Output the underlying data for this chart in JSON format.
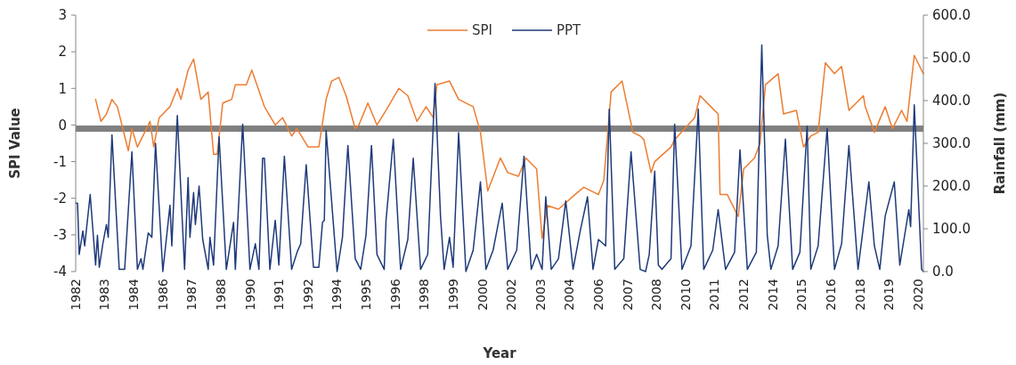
{
  "chart_data": {
    "type": "line",
    "xlabel": "Year",
    "ylabel": "SPI Value",
    "y2label": "Rainfall (mm)",
    "legend": "top",
    "xlim": [
      "1982-01",
      "2020-12"
    ],
    "xticks": [
      {
        "value": "1982-01",
        "label": "1982"
      },
      {
        "value": "1983-05",
        "label": "1983"
      },
      {
        "value": "1984-09",
        "label": "1984"
      },
      {
        "value": "1986-01",
        "label": "1986"
      },
      {
        "value": "1987-05",
        "label": "1987"
      },
      {
        "value": "1988-09",
        "label": "1988"
      },
      {
        "value": "1990-01",
        "label": "1990"
      },
      {
        "value": "1991-05",
        "label": "1991"
      },
      {
        "value": "1992-09",
        "label": "1992"
      },
      {
        "value": "1994-01",
        "label": "1994"
      },
      {
        "value": "1995-05",
        "label": "1995"
      },
      {
        "value": "1996-09",
        "label": "1996"
      },
      {
        "value": "1998-01",
        "label": "1998"
      },
      {
        "value": "1999-05",
        "label": "1999"
      },
      {
        "value": "2000-09",
        "label": "2000"
      },
      {
        "value": "2002-01",
        "label": "2002"
      },
      {
        "value": "2003-05",
        "label": "2003"
      },
      {
        "value": "2004-09",
        "label": "2004"
      },
      {
        "value": "2006-01",
        "label": "2006"
      },
      {
        "value": "2007-05",
        "label": "2007"
      },
      {
        "value": "2008-09",
        "label": "2008"
      },
      {
        "value": "2010-01",
        "label": "2010"
      },
      {
        "value": "2011-05",
        "label": "2011"
      },
      {
        "value": "2012-09",
        "label": "2012"
      },
      {
        "value": "2014-01",
        "label": "2014"
      },
      {
        "value": "2015-05",
        "label": "2015"
      },
      {
        "value": "2016-09",
        "label": "2016"
      },
      {
        "value": "2018-01",
        "label": "2018"
      },
      {
        "value": "2019-05",
        "label": "2019"
      },
      {
        "value": "2020-09",
        "label": "2020"
      }
    ],
    "ylim": [
      -4,
      3
    ],
    "yticks": [
      -4,
      -3,
      -2,
      -1,
      0,
      1,
      2,
      3
    ],
    "y2lim": [
      0,
      600
    ],
    "y2ticks": [
      {
        "value": 0,
        "label": "0.0"
      },
      {
        "value": 100,
        "label": "100.0"
      },
      {
        "value": 200,
        "label": "200.0"
      },
      {
        "value": 300,
        "label": "300.0"
      },
      {
        "value": 400,
        "label": "400.0"
      },
      {
        "value": 500,
        "label": "500.0"
      },
      {
        "value": 600,
        "label": "600.0"
      }
    ],
    "ref_lines": [
      {
        "axis": "y",
        "value": -0.1,
        "color": "#808080"
      }
    ],
    "series": [
      {
        "name": "SPI",
        "color": "#ed7d31",
        "x": [
          "1982-12",
          "1983-03",
          "1983-06",
          "1983-09",
          "1983-12",
          "1984-06",
          "1984-08",
          "1984-11",
          "1985-06",
          "1985-08",
          "1985-11",
          "1986-05",
          "1986-09",
          "1986-11",
          "1987-03",
          "1987-06",
          "1987-10",
          "1988-02",
          "1988-05",
          "1988-07",
          "1988-10",
          "1989-03",
          "1989-05",
          "1989-11",
          "1990-02",
          "1990-09",
          "1991-03",
          "1991-07",
          "1991-12",
          "1992-03",
          "1992-09",
          "1993-03",
          "1993-07",
          "1993-10",
          "1994-02",
          "1994-06",
          "1994-11",
          "1995-01",
          "1995-06",
          "1995-11",
          "1996-04",
          "1996-11",
          "1997-04",
          "1997-09",
          "1998-02",
          "1998-06",
          "1998-08",
          "1999-03",
          "1999-08",
          "2000-04",
          "2000-08",
          "2000-12",
          "2001-07",
          "2001-11",
          "2002-05",
          "2002-09",
          "2003-03",
          "2003-06",
          "2003-09",
          "2004-03",
          "2004-12",
          "2005-05",
          "2006-01",
          "2006-04",
          "2006-08",
          "2007-02",
          "2007-08",
          "2007-12",
          "2008-02",
          "2008-06",
          "2008-08",
          "2009-05",
          "2009-07",
          "2010-06",
          "2010-09",
          "2011-03",
          "2011-07",
          "2011-08",
          "2011-12",
          "2012-06",
          "2012-09",
          "2013-03",
          "2013-06",
          "2013-09",
          "2014-04",
          "2014-07",
          "2015-02",
          "2015-06",
          "2015-10",
          "2016-02",
          "2016-06",
          "2016-11",
          "2017-03",
          "2017-07",
          "2018-03",
          "2018-04",
          "2018-09",
          "2019-03",
          "2019-07",
          "2019-12",
          "2020-03",
          "2020-07",
          "2020-12"
        ],
        "values": [
          0.7,
          0.1,
          0.3,
          0.7,
          0.5,
          -0.7,
          -0.1,
          -0.6,
          0.1,
          -0.6,
          0.2,
          0.5,
          1.0,
          0.7,
          1.5,
          1.8,
          0.7,
          0.9,
          -0.8,
          -0.8,
          0.6,
          0.7,
          1.1,
          1.1,
          1.5,
          0.5,
          0.0,
          0.2,
          -0.3,
          -0.1,
          -0.6,
          -0.6,
          0.7,
          1.2,
          1.3,
          0.8,
          -0.1,
          0.0,
          0.6,
          0.0,
          0.4,
          1.0,
          0.8,
          0.1,
          0.5,
          0.2,
          1.1,
          1.2,
          0.7,
          0.5,
          -0.2,
          -1.8,
          -0.9,
          -1.3,
          -1.4,
          -0.9,
          -1.2,
          -3.1,
          -2.2,
          -2.3,
          -1.9,
          -1.7,
          -1.9,
          -1.5,
          0.9,
          1.2,
          -0.2,
          -0.3,
          -0.4,
          -1.3,
          -1.0,
          -0.6,
          -0.4,
          0.2,
          0.8,
          0.5,
          0.3,
          -1.9,
          -1.9,
          -2.5,
          -1.2,
          -0.9,
          -0.5,
          1.1,
          1.4,
          0.3,
          0.4,
          -0.6,
          -0.3,
          -0.2,
          1.7,
          1.4,
          1.6,
          0.4,
          0.8,
          0.5,
          -0.2,
          0.5,
          -0.1,
          0.4,
          0.1,
          1.9,
          1.4
        ]
      },
      {
        "name": "PPT",
        "color": "#1f3a7a",
        "axis": "y2",
        "x": [
          "1982-01",
          "1982-02",
          "1982-03",
          "1982-05",
          "1982-06",
          "1982-09",
          "1982-12",
          "1983-01",
          "1983-02",
          "1983-04",
          "1983-06",
          "1983-07",
          "1983-09",
          "1984-01",
          "1984-04",
          "1984-08",
          "1984-11",
          "1985-01",
          "1985-02",
          "1985-05",
          "1985-07",
          "1985-09",
          "1986-01",
          "1986-05",
          "1986-06",
          "1986-09",
          "1987-01",
          "1987-03",
          "1987-04",
          "1987-06",
          "1987-07",
          "1987-09",
          "1987-11",
          "1988-02",
          "1988-03",
          "1988-05",
          "1988-08",
          "1988-12",
          "1989-04",
          "1989-05",
          "1989-09",
          "1990-01",
          "1990-04",
          "1990-06",
          "1990-08",
          "1990-09",
          "1990-12",
          "1991-03",
          "1991-05",
          "1991-08",
          "1991-12",
          "1992-03",
          "1992-05",
          "1992-08",
          "1992-12",
          "1993-03",
          "1993-05",
          "1993-06",
          "1993-07",
          "1994-01",
          "1994-04",
          "1994-07",
          "1994-11",
          "1995-02",
          "1995-05",
          "1995-08",
          "1995-11",
          "1996-03",
          "1996-04",
          "1996-08",
          "1996-12",
          "1997-04",
          "1997-07",
          "1997-11",
          "1998-03",
          "1998-07",
          "1998-10",
          "1998-12",
          "1999-03",
          "1999-05",
          "1999-08",
          "1999-12",
          "2000-04",
          "2000-08",
          "2000-11",
          "2001-03",
          "2001-08",
          "2001-11",
          "2002-04",
          "2002-08",
          "2002-12",
          "2003-03",
          "2003-06",
          "2003-08",
          "2003-11",
          "2004-03",
          "2004-07",
          "2004-11",
          "2005-03",
          "2005-07",
          "2005-10",
          "2006-01",
          "2006-05",
          "2006-07",
          "2006-10",
          "2007-03",
          "2007-07",
          "2007-12",
          "2008-03",
          "2008-05",
          "2008-08",
          "2008-10",
          "2008-12",
          "2009-05",
          "2009-07",
          "2009-11",
          "2010-04",
          "2010-08",
          "2010-11",
          "2011-04",
          "2011-07",
          "2011-11",
          "2012-04",
          "2012-07",
          "2012-11",
          "2013-04",
          "2013-07",
          "2013-10",
          "2013-12",
          "2014-04",
          "2014-08",
          "2014-12",
          "2015-04",
          "2015-08",
          "2015-10",
          "2016-02",
          "2016-07",
          "2016-11",
          "2017-03",
          "2017-07",
          "2017-12",
          "2018-03",
          "2018-06",
          "2018-09",
          "2018-12",
          "2019-03",
          "2019-08",
          "2019-11",
          "2020-04",
          "2020-05",
          "2020-07",
          "2020-11",
          "2020-12"
        ],
        "values": [
          160,
          160,
          40,
          95,
          60,
          180,
          15,
          85,
          10,
          65,
          110,
          80,
          320,
          5,
          5,
          280,
          5,
          30,
          5,
          90,
          80,
          300,
          0,
          155,
          60,
          365,
          5,
          220,
          80,
          185,
          110,
          200,
          75,
          5,
          80,
          15,
          315,
          5,
          115,
          5,
          345,
          5,
          65,
          5,
          265,
          265,
          5,
          120,
          15,
          270,
          5,
          45,
          65,
          250,
          10,
          10,
          115,
          120,
          330,
          0,
          80,
          295,
          30,
          5,
          85,
          295,
          40,
          5,
          120,
          310,
          5,
          75,
          265,
          5,
          40,
          440,
          130,
          5,
          80,
          10,
          325,
          0,
          50,
          210,
          5,
          50,
          160,
          5,
          50,
          270,
          5,
          40,
          5,
          175,
          5,
          30,
          165,
          5,
          95,
          175,
          5,
          75,
          60,
          380,
          5,
          30,
          280,
          5,
          0,
          40,
          235,
          15,
          5,
          30,
          345,
          5,
          60,
          380,
          5,
          50,
          145,
          5,
          45,
          285,
          5,
          45,
          530,
          85,
          5,
          60,
          310,
          5,
          45,
          340,
          5,
          60,
          335,
          5,
          65,
          295,
          5,
          105,
          210,
          60,
          5,
          130,
          210,
          15,
          145,
          105,
          390,
          5,
          0
        ]
      }
    ]
  }
}
